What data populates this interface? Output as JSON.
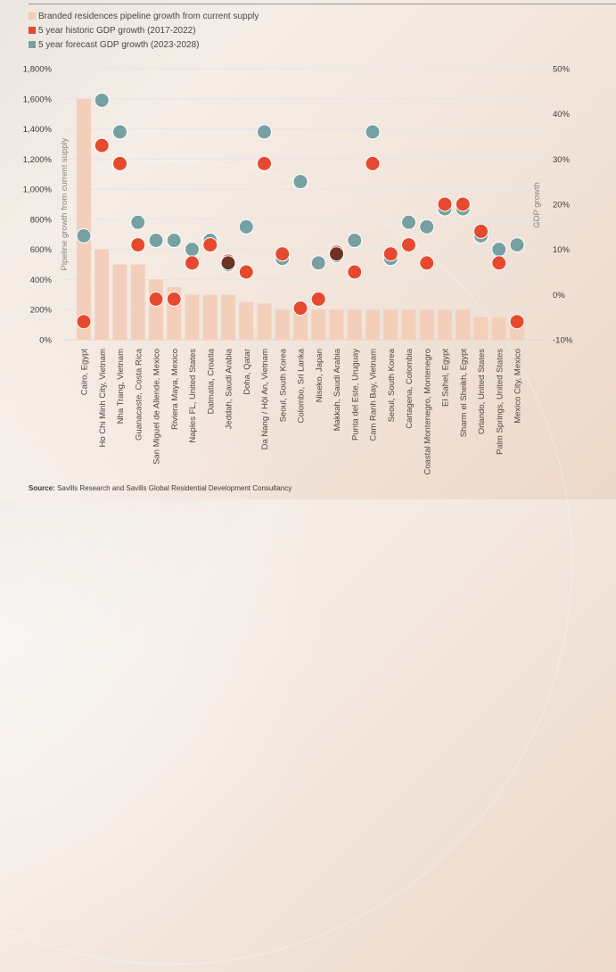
{
  "legend": [
    {
      "label": "Branded residences pipeline growth from current supply",
      "color": "#f2cdb8"
    },
    {
      "label": "5 year historic GDP growth (2017-2022)",
      "color": "#e64a2e"
    },
    {
      "label": "5 year forecast GDP growth (2023-2028)",
      "color": "#77a0a2"
    }
  ],
  "source": {
    "label": "Source:",
    "text": "Savills Research and Savills Global Residential Development Consultancy"
  },
  "chart_data": {
    "type": "bar",
    "title": "",
    "ylabel": "Pipeline growth from current supply",
    "y2label": "GDP growth",
    "ylim": [
      0,
      1800
    ],
    "y2lim": [
      -10,
      50
    ],
    "yticks": [
      "0%",
      "200%",
      "400%",
      "600%",
      "800%",
      "1,000%",
      "1,200%",
      "1,400%",
      "1,600%",
      "1,800%"
    ],
    "y2ticks": [
      "-10%",
      "0%",
      "10%",
      "20%",
      "30%",
      "40%",
      "50%"
    ],
    "grid": true,
    "legend_position": "top-left",
    "overlap_color": "#6e3324",
    "categories": [
      "Cairo, Egypt",
      "Ho Chi Minh City, Vietnam",
      "Nha Trang, Vietnam",
      "Guanacaste, Costa Rica",
      "San Miguel de Allende, Mexico",
      "Riviera Maya, Mexico",
      "Naples FL, United States",
      "Dalmatia, Croatia",
      "Jeddah, Saudi Arabia",
      "Doha, Qatar",
      "Da Nang / Hội An, Vietnam",
      "Seoul, South Korea",
      "Colombo, Sri Lanka",
      "Niseko, Japan",
      "Makkah, Saudi Arabia",
      "Punta del Este, Uruguay",
      "Cam Ranh Bay, Vietnam",
      "Seoul, South Korea",
      "Cartagena, Colombia",
      "Coastal Montenegro, Montenegro",
      "El Sahel, Egypt",
      "Sharm el Sheikh, Egypt",
      "Orlando, United States",
      "Palm Springs, United States",
      "Mexico City, Mexico"
    ],
    "series": [
      {
        "name": "Branded residences pipeline growth from current supply",
        "type": "bar",
        "axis": "left",
        "values": [
          1600,
          600,
          500,
          500,
          400,
          350,
          300,
          300,
          300,
          250,
          240,
          200,
          200,
          200,
          200,
          200,
          200,
          200,
          200,
          200,
          200,
          200,
          150,
          150,
          150
        ]
      },
      {
        "name": "5 year historic GDP growth (2017-2022)",
        "type": "scatter",
        "axis": "right",
        "values": [
          -6,
          33,
          29,
          11,
          -1,
          -1,
          7,
          11,
          7,
          5,
          29,
          9,
          -3,
          -1,
          9,
          5,
          29,
          9,
          11,
          7,
          20,
          20,
          14,
          7,
          -6
        ]
      },
      {
        "name": "5 year forecast GDP growth (2023-2028)",
        "type": "scatter",
        "axis": "right",
        "values": [
          13,
          43,
          36,
          16,
          12,
          12,
          10,
          12,
          7,
          15,
          36,
          8,
          25,
          7,
          9,
          12,
          36,
          8,
          16,
          15,
          19,
          19,
          13,
          10,
          11
        ]
      }
    ]
  }
}
